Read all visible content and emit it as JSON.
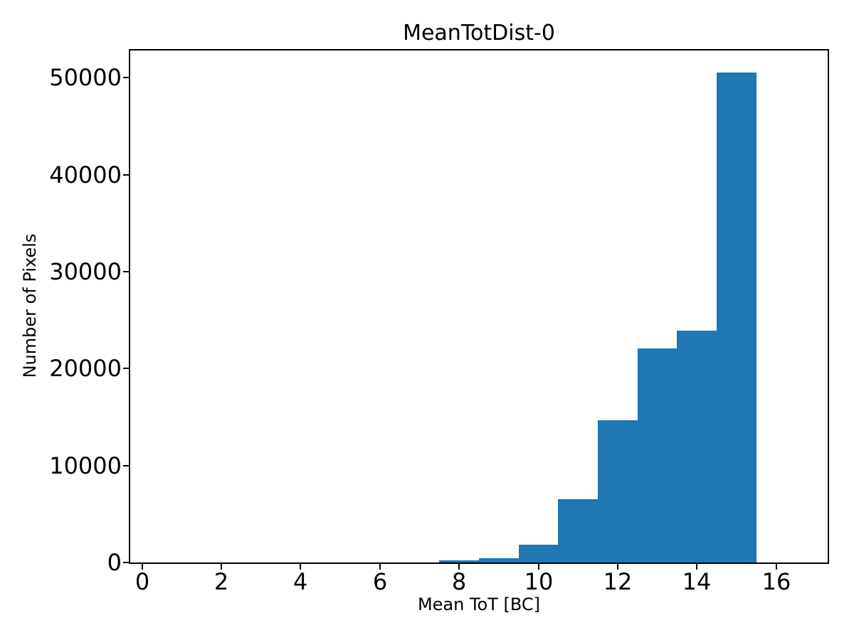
{
  "chart_data": {
    "type": "bar",
    "subtype": "histogram",
    "title": "MeanTotDist-0",
    "xlabel": "Mean ToT [BC]",
    "ylabel": "Number of Pixels",
    "bar_color": "#1f77b4",
    "axis_color": "#000000",
    "background_color": "#ffffff",
    "bin_edges": [
      7.5,
      8.5,
      9.5,
      10.5,
      11.5,
      12.5,
      13.5,
      14.5,
      15.5
    ],
    "bin_centers": [
      8,
      9,
      10,
      11,
      12,
      13,
      14,
      15
    ],
    "counts": [
      220,
      420,
      1850,
      6500,
      14700,
      22100,
      23900,
      50500
    ],
    "xlim": [
      -0.3,
      17.3
    ],
    "ylim": [
      0,
      52800
    ],
    "xticks": [
      0,
      2,
      4,
      6,
      8,
      10,
      12,
      14,
      16
    ],
    "yticks": [
      0,
      10000,
      20000,
      30000,
      40000,
      50000
    ],
    "grid": false,
    "legend": null
  }
}
